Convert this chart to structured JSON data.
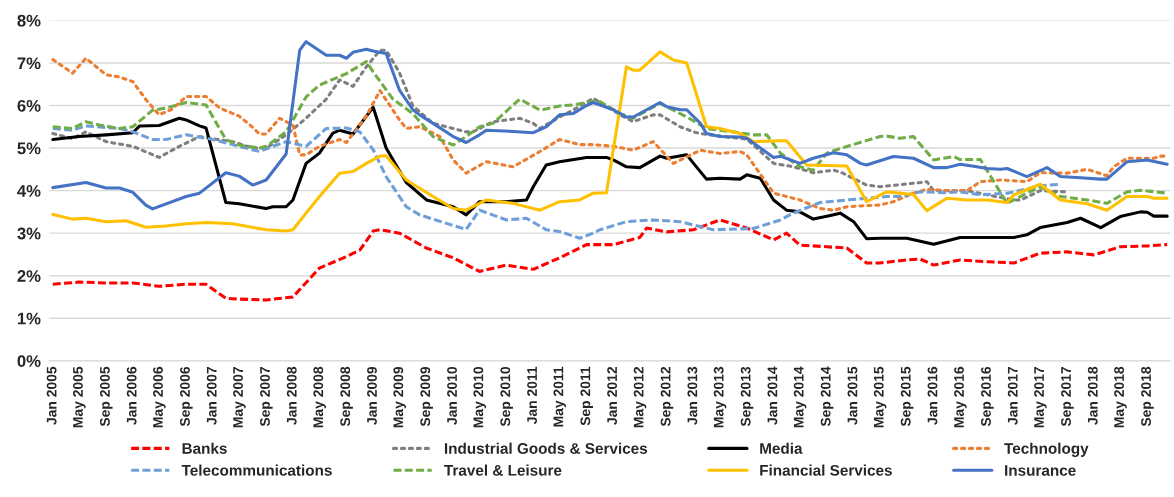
{
  "chart_data": {
    "type": "line",
    "ylim": [
      0,
      8
    ],
    "yticks": [
      {
        "value": 0,
        "label": "0%"
      },
      {
        "value": 1,
        "label": "1%"
      },
      {
        "value": 2,
        "label": "2%"
      },
      {
        "value": 3,
        "label": "3%"
      },
      {
        "value": 4,
        "label": "4%"
      },
      {
        "value": 5,
        "label": "5%"
      },
      {
        "value": 6,
        "label": "6%"
      },
      {
        "value": 7,
        "label": "7%"
      },
      {
        "value": 8,
        "label": "8%"
      }
    ],
    "xlim": [
      "2004-12-16",
      "2018-12-16"
    ],
    "xticks": [
      {
        "value": "2005-01",
        "label": "Jan 2005"
      },
      {
        "value": "2005-05",
        "label": "May 2005"
      },
      {
        "value": "2005-09",
        "label": "Sep 2005"
      },
      {
        "value": "2006-01",
        "label": "Jan 2006"
      },
      {
        "value": "2006-05",
        "label": "May 2006"
      },
      {
        "value": "2006-09",
        "label": "Sep 2006"
      },
      {
        "value": "2007-01",
        "label": "Jan 2007"
      },
      {
        "value": "2007-05",
        "label": "May 2007"
      },
      {
        "value": "2007-09",
        "label": "Sep 2007"
      },
      {
        "value": "2008-01",
        "label": "Jan 2008"
      },
      {
        "value": "2008-05",
        "label": "May 2008"
      },
      {
        "value": "2008-09",
        "label": "Sep 2008"
      },
      {
        "value": "2009-01",
        "label": "Jan 2009"
      },
      {
        "value": "2009-05",
        "label": "May 2009"
      },
      {
        "value": "2009-09",
        "label": "Sep 2009"
      },
      {
        "value": "2010-01",
        "label": "Jan 2010"
      },
      {
        "value": "2010-05",
        "label": "May 2010"
      },
      {
        "value": "2010-09",
        "label": "Sep 2010"
      },
      {
        "value": "2011-01",
        "label": "Jan 2011"
      },
      {
        "value": "2011-05",
        "label": "May 2011"
      },
      {
        "value": "2011-09",
        "label": "Sep 2011"
      },
      {
        "value": "2012-01",
        "label": "Jan 2012"
      },
      {
        "value": "2012-05",
        "label": "May 2012"
      },
      {
        "value": "2012-09",
        "label": "Sep 2012"
      },
      {
        "value": "2013-01",
        "label": "Jan 2013"
      },
      {
        "value": "2013-05",
        "label": "May 2013"
      },
      {
        "value": "2013-09",
        "label": "Sep 2013"
      },
      {
        "value": "2014-01",
        "label": "Jan 2014"
      },
      {
        "value": "2014-05",
        "label": "May 2014"
      },
      {
        "value": "2014-09",
        "label": "Sep 2014"
      },
      {
        "value": "2015-01",
        "label": "Jan 2015"
      },
      {
        "value": "2015-05",
        "label": "May 2015"
      },
      {
        "value": "2015-09",
        "label": "Sep 2015"
      },
      {
        "value": "2016-01",
        "label": "Jan 2016"
      },
      {
        "value": "2016-05",
        "label": "May 2016"
      },
      {
        "value": "2016-09",
        "label": "Sep 2016"
      },
      {
        "value": "2017-01",
        "label": "Jan 2017"
      },
      {
        "value": "2017-05",
        "label": "May 2017"
      },
      {
        "value": "2017-09",
        "label": "Sep 2017"
      },
      {
        "value": "2018-01",
        "label": "Jan 2018"
      },
      {
        "value": "2018-05",
        "label": "May 2018"
      },
      {
        "value": "2018-09",
        "label": "Sep 2018"
      }
    ],
    "grid": "y",
    "legend": "bottom",
    "series": [
      {
        "name": "Banks",
        "color": "#ff0000",
        "line_style": "dashed",
        "x": [
          "2005-01",
          "2005-05",
          "2005-09",
          "2006-01",
          "2006-05",
          "2006-09",
          "2006-12",
          "2007-03",
          "2007-05",
          "2007-09",
          "2008-01",
          "2008-05",
          "2008-09",
          "2008-11",
          "2009-01",
          "2009-02",
          "2009-05",
          "2009-09",
          "2010-01",
          "2010-05",
          "2010-09",
          "2011-01",
          "2011-05",
          "2011-09",
          "2012-01",
          "2012-05",
          "2012-06",
          "2012-09",
          "2013-01",
          "2013-05",
          "2013-09",
          "2014-01",
          "2014-03",
          "2014-05",
          "2014-09",
          "2014-12",
          "2015-01",
          "2015-03",
          "2015-05",
          "2015-09",
          "2015-11",
          "2016-01",
          "2016-05",
          "2016-09",
          "2017-01",
          "2017-05",
          "2017-09",
          "2018-01",
          "2018-05",
          "2018-09",
          "2018-12"
        ],
        "values": [
          1.8,
          1.85,
          1.83,
          1.83,
          1.75,
          1.8,
          1.8,
          1.47,
          1.45,
          1.43,
          1.5,
          2.18,
          2.45,
          2.6,
          3.05,
          3.08,
          3.0,
          2.65,
          2.42,
          2.1,
          2.25,
          2.15,
          2.42,
          2.73,
          2.73,
          2.9,
          3.12,
          3.03,
          3.08,
          3.31,
          3.12,
          2.84,
          3.0,
          2.72,
          2.68,
          2.65,
          2.53,
          2.3,
          2.3,
          2.37,
          2.39,
          2.25,
          2.37,
          2.33,
          2.3,
          2.53,
          2.56,
          2.49,
          2.68,
          2.7,
          2.73
        ]
      },
      {
        "name": "Industrial Goods & Services",
        "color": "#7f7f7f",
        "line_style": "dotted",
        "x": [
          "2005-01",
          "2005-04",
          "2005-06",
          "2005-09",
          "2006-01",
          "2006-05",
          "2006-08",
          "2006-11",
          "2007-04",
          "2007-07",
          "2007-09",
          "2007-12",
          "2008-03",
          "2008-06",
          "2008-08",
          "2008-10",
          "2008-12",
          "2009-02",
          "2009-03",
          "2009-05",
          "2009-07",
          "2009-10",
          "2010-01",
          "2010-03",
          "2010-04",
          "2010-06",
          "2010-07",
          "2010-11",
          "2011-01",
          "2011-02",
          "2011-05",
          "2011-07",
          "2011-10",
          "2011-12",
          "2012-02",
          "2012-04",
          "2012-07",
          "2012-08",
          "2012-11",
          "2013-01",
          "2013-02",
          "2013-06",
          "2013-09",
          "2014-01",
          "2014-04",
          "2014-07",
          "2014-10",
          "2014-11",
          "2015-03",
          "2015-05",
          "2015-11",
          "2015-12",
          "2016-01",
          "2016-06",
          "2016-09",
          "2017-01",
          "2017-02",
          "2017-05",
          "2017-09"
        ],
        "values": [
          5.34,
          5.22,
          5.38,
          5.15,
          5.04,
          4.78,
          5.04,
          5.27,
          5.15,
          5.0,
          5.0,
          5.31,
          5.7,
          6.15,
          6.6,
          6.45,
          6.91,
          7.3,
          7.3,
          6.77,
          5.99,
          5.58,
          5.46,
          5.38,
          5.38,
          5.54,
          5.62,
          5.7,
          5.58,
          5.46,
          5.73,
          5.89,
          6.17,
          5.99,
          5.78,
          5.62,
          5.78,
          5.78,
          5.5,
          5.38,
          5.34,
          5.26,
          5.21,
          4.64,
          4.56,
          4.42,
          4.48,
          4.44,
          4.13,
          4.09,
          4.19,
          4.21,
          4.0,
          4.0,
          3.9,
          3.78,
          3.78,
          4.0,
          3.97
        ]
      },
      {
        "name": "Media",
        "color": "#000000",
        "line_style": "solid",
        "x": [
          "2005-01",
          "2005-05",
          "2005-09",
          "2006-01",
          "2006-02",
          "2006-05",
          "2006-08",
          "2006-09",
          "2006-11",
          "2006-12",
          "2007-03",
          "2007-05",
          "2007-09",
          "2007-10",
          "2007-12",
          "2008-01",
          "2008-03",
          "2008-05",
          "2008-07",
          "2008-08",
          "2008-10",
          "2009-01",
          "2009-03",
          "2009-06",
          "2009-09",
          "2010-01",
          "2010-03",
          "2010-05",
          "2010-09",
          "2010-12",
          "2011-01",
          "2011-03",
          "2011-05",
          "2011-09",
          "2011-12",
          "2012-01",
          "2012-03",
          "2012-05",
          "2012-08",
          "2012-09",
          "2012-12",
          "2013-01",
          "2013-03",
          "2013-05",
          "2013-08",
          "2013-09",
          "2013-11",
          "2014-01",
          "2014-03",
          "2014-05",
          "2014-07",
          "2014-09",
          "2014-11",
          "2015-01",
          "2015-03",
          "2015-05",
          "2015-09",
          "2016-01",
          "2016-05",
          "2016-09",
          "2017-01",
          "2017-03",
          "2017-05",
          "2017-09",
          "2017-11",
          "2018-02",
          "2018-05",
          "2018-08",
          "2018-09",
          "2018-10",
          "2018-12"
        ],
        "values": [
          5.2,
          5.27,
          5.31,
          5.36,
          5.52,
          5.53,
          5.7,
          5.66,
          5.52,
          5.47,
          3.72,
          3.69,
          3.58,
          3.62,
          3.62,
          3.78,
          4.64,
          4.88,
          5.35,
          5.42,
          5.33,
          5.96,
          5.0,
          4.19,
          3.78,
          3.62,
          3.43,
          3.74,
          3.74,
          3.78,
          4.09,
          4.6,
          4.68,
          4.78,
          4.78,
          4.72,
          4.56,
          4.54,
          4.81,
          4.76,
          4.84,
          4.64,
          4.27,
          4.29,
          4.27,
          4.37,
          4.29,
          3.78,
          3.54,
          3.5,
          3.33,
          3.4,
          3.47,
          3.27,
          2.87,
          2.88,
          2.88,
          2.74,
          2.9,
          2.9,
          2.9,
          2.96,
          3.13,
          3.25,
          3.35,
          3.13,
          3.39,
          3.5,
          3.49,
          3.4,
          3.4
        ]
      },
      {
        "name": "Technology",
        "color": "#ed7d31",
        "line_style": "dotted",
        "x": [
          "2005-01",
          "2005-04",
          "2005-06",
          "2005-09",
          "2005-11",
          "2006-01",
          "2006-03",
          "2006-05",
          "2006-07",
          "2006-09",
          "2006-12",
          "2007-02",
          "2007-05",
          "2007-07",
          "2007-08",
          "2007-09",
          "2007-11",
          "2008-01",
          "2008-02",
          "2008-03",
          "2008-05",
          "2008-08",
          "2008-09",
          "2008-12",
          "2009-02",
          "2009-05",
          "2009-06",
          "2009-08",
          "2009-11",
          "2010-01",
          "2010-03",
          "2010-06",
          "2010-10",
          "2011-02",
          "2011-05",
          "2011-08",
          "2011-10",
          "2012-01",
          "2012-04",
          "2012-07",
          "2012-10",
          "2013-02",
          "2013-05",
          "2013-08",
          "2013-09",
          "2014-01",
          "2014-02",
          "2014-05",
          "2014-08",
          "2014-10",
          "2014-12",
          "2015-02",
          "2015-05",
          "2015-07",
          "2015-10",
          "2015-12",
          "2016-03",
          "2016-06",
          "2016-08",
          "2016-11",
          "2017-03",
          "2017-05",
          "2017-09",
          "2017-12",
          "2018-03",
          "2018-04",
          "2018-06",
          "2018-10",
          "2018-11",
          "2018-12"
        ],
        "values": [
          7.08,
          6.76,
          7.11,
          6.72,
          6.67,
          6.56,
          6.14,
          5.78,
          5.92,
          6.21,
          6.21,
          5.94,
          5.75,
          5.49,
          5.33,
          5.33,
          5.7,
          5.54,
          4.84,
          4.84,
          5.04,
          5.2,
          5.13,
          5.75,
          6.35,
          5.66,
          5.46,
          5.5,
          5.27,
          4.72,
          4.41,
          4.68,
          4.56,
          4.92,
          5.2,
          5.08,
          5.08,
          5.04,
          4.95,
          5.15,
          4.64,
          4.95,
          4.87,
          4.92,
          4.84,
          3.94,
          3.9,
          3.78,
          3.58,
          3.54,
          3.62,
          3.64,
          3.66,
          3.74,
          3.94,
          4.03,
          4.0,
          4.0,
          4.21,
          4.25,
          4.21,
          4.42,
          4.41,
          4.5,
          4.35,
          4.56,
          4.76,
          4.76,
          4.81,
          4.81
        ]
      },
      {
        "name": "Telecommunications",
        "color": "#6f9fd8",
        "line_style": "dashed",
        "x": [
          "2005-01",
          "2005-04",
          "2005-06",
          "2005-11",
          "2006-01",
          "2006-04",
          "2006-06",
          "2006-09",
          "2007-01",
          "2007-05",
          "2007-08",
          "2007-10",
          "2007-12",
          "2008-03",
          "2008-06",
          "2008-09",
          "2008-11",
          "2009-01",
          "2009-03",
          "2009-06",
          "2009-08",
          "2009-12",
          "2010-03",
          "2010-05",
          "2010-09",
          "2010-12",
          "2011-03",
          "2011-05",
          "2011-08",
          "2011-10",
          "2011-11",
          "2012-03",
          "2012-07",
          "2012-11",
          "2013-04",
          "2013-10",
          "2014-02",
          "2014-04",
          "2014-08",
          "2014-12",
          "2015-06",
          "2015-08",
          "2015-11",
          "2016-03",
          "2016-05",
          "2016-08",
          "2016-12",
          "2017-01",
          "2017-05",
          "2017-08"
        ],
        "values": [
          5.46,
          5.42,
          5.52,
          5.46,
          5.38,
          5.2,
          5.2,
          5.31,
          5.2,
          5.04,
          4.92,
          5.04,
          5.15,
          5.04,
          5.46,
          5.47,
          5.38,
          4.96,
          4.33,
          3.62,
          3.43,
          3.23,
          3.09,
          3.54,
          3.31,
          3.35,
          3.08,
          3.04,
          2.88,
          3.0,
          3.08,
          3.27,
          3.31,
          3.27,
          3.08,
          3.11,
          3.31,
          3.47,
          3.72,
          3.78,
          3.86,
          3.86,
          3.97,
          3.95,
          3.97,
          3.9,
          3.94,
          3.97,
          4.11,
          4.15
        ]
      },
      {
        "name": "Travel & Leisure",
        "color": "#70ad47",
        "line_style": "dashed",
        "x": [
          "2005-01",
          "2005-04",
          "2005-06",
          "2005-08",
          "2005-11",
          "2006-01",
          "2006-04",
          "2006-06",
          "2006-09",
          "2006-12",
          "2007-03",
          "2007-05",
          "2007-08",
          "2007-09",
          "2007-12",
          "2008-03",
          "2008-05",
          "2008-09",
          "2008-12",
          "2009-01",
          "2009-04",
          "2009-07",
          "2009-10",
          "2010-01",
          "2010-03",
          "2010-05",
          "2010-07",
          "2010-11",
          "2011-02",
          "2011-05",
          "2011-07",
          "2011-10",
          "2011-11",
          "2012-02",
          "2012-04",
          "2012-08",
          "2012-12",
          "2013-03",
          "2013-07",
          "2013-10",
          "2013-12",
          "2014-02",
          "2014-05",
          "2014-07",
          "2014-09",
          "2014-11",
          "2015-05",
          "2015-06",
          "2015-08",
          "2015-10",
          "2016-01",
          "2016-04",
          "2016-05",
          "2016-08",
          "2016-12",
          "2017-03",
          "2017-05",
          "2017-08",
          "2017-12",
          "2018-03",
          "2018-06",
          "2018-08",
          "2018-12"
        ],
        "values": [
          5.5,
          5.46,
          5.62,
          5.54,
          5.46,
          5.5,
          5.89,
          5.94,
          6.07,
          6.01,
          5.2,
          5.07,
          5.0,
          5.04,
          5.38,
          6.2,
          6.48,
          6.75,
          7.03,
          6.79,
          6.15,
          5.81,
          5.27,
          5.07,
          5.27,
          5.5,
          5.58,
          6.15,
          5.89,
          5.99,
          6.01,
          6.1,
          6.09,
          5.81,
          5.7,
          6.05,
          5.73,
          5.46,
          5.38,
          5.31,
          5.31,
          4.88,
          4.56,
          4.48,
          4.88,
          4.99,
          5.27,
          5.28,
          5.23,
          5.27,
          4.72,
          4.8,
          4.73,
          4.73,
          3.7,
          3.94,
          4.09,
          3.86,
          3.78,
          3.7,
          3.97,
          4.01,
          3.94
        ]
      },
      {
        "name": "Financial Services",
        "color": "#ffc000",
        "line_style": "solid",
        "x": [
          "2005-01",
          "2005-04",
          "2005-06",
          "2005-09",
          "2005-12",
          "2006-03",
          "2006-06",
          "2006-09",
          "2006-12",
          "2007-04",
          "2007-09",
          "2007-12",
          "2008-01",
          "2008-03",
          "2008-05",
          "2008-08",
          "2008-10",
          "2008-12",
          "2009-02",
          "2009-03",
          "2009-06",
          "2009-10",
          "2010-01",
          "2010-03",
          "2010-06",
          "2010-10",
          "2011-02",
          "2011-05",
          "2011-08",
          "2011-10",
          "2011-12",
          "2012-03",
          "2012-04",
          "2012-05",
          "2012-08",
          "2012-10",
          "2012-12",
          "2013-03",
          "2013-05",
          "2013-08",
          "2013-10",
          "2014-02",
          "2014-03",
          "2014-06",
          "2014-12",
          "2015-03",
          "2015-06",
          "2015-10",
          "2015-12",
          "2016-03",
          "2016-06",
          "2016-09",
          "2016-12",
          "2017-01",
          "2017-05",
          "2017-08",
          "2017-12",
          "2018-03",
          "2018-06",
          "2018-09",
          "2018-10",
          "2018-12"
        ],
        "values": [
          3.44,
          3.33,
          3.35,
          3.27,
          3.29,
          3.14,
          3.17,
          3.22,
          3.25,
          3.22,
          3.08,
          3.05,
          3.08,
          3.47,
          3.86,
          4.41,
          4.45,
          4.64,
          4.81,
          4.82,
          4.25,
          3.86,
          3.58,
          3.54,
          3.78,
          3.7,
          3.54,
          3.74,
          3.78,
          3.94,
          3.95,
          6.91,
          6.83,
          6.83,
          7.26,
          7.07,
          7.0,
          5.5,
          5.46,
          5.34,
          5.15,
          5.17,
          5.17,
          4.6,
          4.58,
          3.74,
          3.97,
          3.91,
          3.53,
          3.82,
          3.78,
          3.78,
          3.72,
          3.9,
          4.15,
          3.78,
          3.69,
          3.54,
          3.86,
          3.86,
          3.82,
          3.82
        ]
      },
      {
        "name": "Insurance",
        "color": "#4472c4",
        "line_style": "solid",
        "x": [
          "2005-01",
          "2005-06",
          "2005-09",
          "2005-11",
          "2006-01",
          "2006-03",
          "2006-04",
          "2006-09",
          "2006-11",
          "2007-03",
          "2007-05",
          "2007-07",
          "2007-09",
          "2007-12",
          "2008-02",
          "2008-03",
          "2008-06",
          "2008-08",
          "2008-09",
          "2008-10",
          "2008-12",
          "2009-01",
          "2009-03",
          "2009-05",
          "2009-07",
          "2009-08",
          "2009-10",
          "2010-01",
          "2010-03",
          "2010-05",
          "2010-06",
          "2010-10",
          "2011-01",
          "2011-03",
          "2011-05",
          "2011-07",
          "2011-09",
          "2011-10",
          "2012-01",
          "2012-03",
          "2012-04",
          "2012-08",
          "2012-09",
          "2012-11",
          "2012-12",
          "2013-02",
          "2013-03",
          "2013-05",
          "2013-08",
          "2013-09",
          "2014-01",
          "2014-02",
          "2014-05",
          "2014-07",
          "2014-10",
          "2014-12",
          "2015-02",
          "2015-03",
          "2015-07",
          "2015-10",
          "2016-01",
          "2016-03",
          "2016-05",
          "2016-07",
          "2016-09",
          "2016-11",
          "2016-12",
          "2017-03",
          "2017-06",
          "2017-08",
          "2017-11",
          "2018-02",
          "2018-03",
          "2018-06",
          "2018-09",
          "2018-12"
        ],
        "values": [
          4.07,
          4.19,
          4.06,
          4.06,
          3.96,
          3.66,
          3.57,
          3.86,
          3.94,
          4.42,
          4.34,
          4.13,
          4.25,
          4.86,
          7.3,
          7.5,
          7.18,
          7.18,
          7.11,
          7.25,
          7.32,
          7.28,
          7.22,
          6.36,
          5.9,
          5.78,
          5.58,
          5.27,
          5.13,
          5.31,
          5.42,
          5.39,
          5.36,
          5.5,
          5.78,
          5.81,
          6.0,
          6.07,
          5.9,
          5.73,
          5.73,
          6.07,
          5.97,
          5.9,
          5.9,
          5.58,
          5.34,
          5.27,
          5.26,
          5.23,
          4.78,
          4.81,
          4.64,
          4.76,
          4.89,
          4.84,
          4.64,
          4.6,
          4.8,
          4.76,
          4.54,
          4.54,
          4.62,
          4.57,
          4.52,
          4.5,
          4.52,
          4.33,
          4.54,
          4.33,
          4.3,
          4.27,
          4.27,
          4.68,
          4.72,
          4.62
        ]
      }
    ]
  }
}
